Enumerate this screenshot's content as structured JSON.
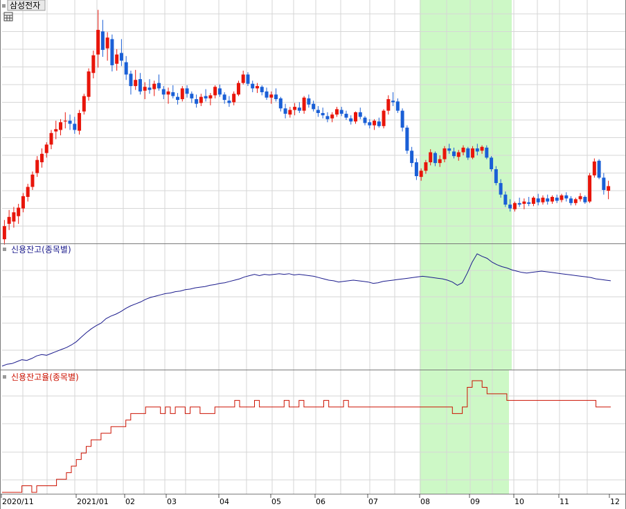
{
  "colors": {
    "up": "#e8150a",
    "down": "#1a5fd6",
    "credit_balance": "#1a1a8c",
    "credit_ratio": "#cc1100",
    "highlight": "#cdf8c6",
    "grid": "#d6d6d6",
    "frame": "#7a7a7a"
  },
  "icons": {
    "table": "table-icon",
    "panel_marker": "square-marker-icon"
  },
  "chart_data": [
    {
      "type": "candlestick",
      "title": "삼성전자",
      "x_labels": [
        "2020/11",
        "2021/01",
        "02",
        "03",
        "04",
        "05",
        "06",
        "07",
        "08",
        "09",
        "10",
        "11",
        "12"
      ],
      "highlight_range": [
        "08",
        "09"
      ],
      "grid": true,
      "ylim": [
        67000,
        97000
      ],
      "ohlc": [
        [
          67000,
          69500,
          66300,
          68700
        ],
        [
          69000,
          70800,
          68200,
          69900
        ],
        [
          69300,
          71200,
          68500,
          70500
        ],
        [
          70000,
          71600,
          69000,
          71100
        ],
        [
          71000,
          73000,
          70500,
          72600
        ],
        [
          72500,
          74200,
          71900,
          73800
        ],
        [
          73800,
          75800,
          73400,
          75400
        ],
        [
          75600,
          77800,
          75100,
          77300
        ],
        [
          77000,
          78800,
          76300,
          78100
        ],
        [
          78200,
          79600,
          77600,
          79300
        ],
        [
          79300,
          81200,
          78700,
          80800
        ],
        [
          81000,
          82400,
          80000,
          81300
        ],
        [
          81200,
          82600,
          80500,
          82200
        ],
        [
          82300,
          83500,
          81400,
          82400
        ],
        [
          82400,
          83200,
          81200,
          82000
        ],
        [
          82000,
          82900,
          80700,
          81200
        ],
        [
          81100,
          83800,
          80600,
          83400
        ],
        [
          83600,
          85900,
          83200,
          85600
        ],
        [
          85500,
          89200,
          85000,
          88800
        ],
        [
          88600,
          91500,
          87900,
          90900
        ],
        [
          91000,
          96800,
          89300,
          94200
        ],
        [
          94000,
          95500,
          90700,
          91600
        ],
        [
          91800,
          93900,
          90200,
          93200
        ],
        [
          93000,
          93600,
          88800,
          89600
        ],
        [
          89800,
          91700,
          88900,
          91000
        ],
        [
          91200,
          93000,
          89500,
          90200
        ],
        [
          90000,
          90800,
          87700,
          88400
        ],
        [
          88500,
          88900,
          85800,
          86900
        ],
        [
          86900,
          89000,
          86400,
          87700
        ],
        [
          87800,
          88600,
          85800,
          86200
        ],
        [
          86300,
          87400,
          85200,
          86800
        ],
        [
          86700,
          87800,
          85900,
          86400
        ],
        [
          86500,
          87600,
          85600,
          87200
        ],
        [
          87300,
          88400,
          86300,
          86600
        ],
        [
          86500,
          86900,
          85200,
          85800
        ],
        [
          85800,
          86700,
          84600,
          86200
        ],
        [
          86100,
          87000,
          85300,
          85600
        ],
        [
          85500,
          86000,
          84500,
          85100
        ],
        [
          85200,
          86900,
          84900,
          86600
        ],
        [
          86600,
          87000,
          85400,
          85900
        ],
        [
          85900,
          86200,
          84700,
          85300
        ],
        [
          85200,
          85800,
          84100,
          84600
        ],
        [
          84700,
          85900,
          84300,
          85500
        ],
        [
          85600,
          86500,
          84900,
          85300
        ],
        [
          85300,
          86000,
          84400,
          85700
        ],
        [
          85700,
          87000,
          85300,
          86800
        ],
        [
          86600,
          87100,
          85500,
          85800
        ],
        [
          85800,
          86100,
          84600,
          85100
        ],
        [
          85000,
          85600,
          84200,
          84700
        ],
        [
          84800,
          86200,
          84400,
          85900
        ],
        [
          85800,
          87600,
          85600,
          87300
        ],
        [
          87300,
          88900,
          87100,
          88400
        ],
        [
          88400,
          88700,
          86900,
          87200
        ],
        [
          87200,
          87600,
          86100,
          86600
        ],
        [
          86600,
          87300,
          86000,
          86900
        ],
        [
          86800,
          87000,
          85700,
          86100
        ],
        [
          86200,
          86700,
          85100,
          85400
        ],
        [
          85400,
          86200,
          84600,
          85800
        ],
        [
          85800,
          86600,
          84900,
          85200
        ],
        [
          85300,
          85500,
          83600,
          84000
        ],
        [
          84000,
          84600,
          82700,
          83300
        ],
        [
          83200,
          84200,
          82800,
          83800
        ],
        [
          83800,
          84700,
          83100,
          84200
        ],
        [
          84100,
          84800,
          83400,
          83700
        ],
        [
          83700,
          85600,
          83300,
          85400
        ],
        [
          85300,
          85800,
          84100,
          84500
        ],
        [
          84600,
          85000,
          83600,
          83900
        ],
        [
          83800,
          84300,
          82900,
          83400
        ],
        [
          83400,
          84100,
          82700,
          83100
        ],
        [
          83000,
          83500,
          82200,
          82600
        ],
        [
          82700,
          83500,
          82200,
          83200
        ],
        [
          83200,
          84200,
          82900,
          83900
        ],
        [
          83800,
          84200,
          83000,
          83300
        ],
        [
          83300,
          83700,
          82500,
          82800
        ],
        [
          82700,
          83100,
          81900,
          82300
        ],
        [
          82300,
          83600,
          82000,
          83500
        ],
        [
          83500,
          84100,
          82600,
          82900
        ],
        [
          82800,
          83000,
          81800,
          82100
        ],
        [
          82200,
          82600,
          81400,
          81800
        ],
        [
          81800,
          82600,
          81200,
          82400
        ],
        [
          82300,
          82800,
          81500,
          81700
        ],
        [
          81700,
          83900,
          81400,
          83700
        ],
        [
          83700,
          85700,
          83200,
          85200
        ],
        [
          85000,
          86100,
          84300,
          84800
        ],
        [
          84900,
          85300,
          83400,
          83700
        ],
        [
          83700,
          84000,
          81000,
          81500
        ],
        [
          81500,
          81800,
          78100,
          78500
        ],
        [
          78500,
          79000,
          76400,
          76900
        ],
        [
          77000,
          77500,
          74700,
          75200
        ],
        [
          75100,
          76200,
          74600,
          75900
        ],
        [
          75900,
          77300,
          75500,
          77000
        ],
        [
          77000,
          78700,
          76600,
          78300
        ],
        [
          78200,
          78400,
          76500,
          76900
        ],
        [
          76900,
          77900,
          76400,
          77400
        ],
        [
          77400,
          79100,
          77000,
          78800
        ],
        [
          78800,
          79400,
          78100,
          78500
        ],
        [
          78400,
          78900,
          77500,
          77800
        ],
        [
          77700,
          78600,
          77200,
          78300
        ],
        [
          78300,
          79200,
          77900,
          78900
        ],
        [
          78800,
          79000,
          77300,
          77600
        ],
        [
          77600,
          79100,
          77400,
          78800
        ],
        [
          78800,
          79400,
          77900,
          78400
        ],
        [
          78500,
          79200,
          78100,
          79000
        ],
        [
          78900,
          79200,
          77400,
          77600
        ],
        [
          77600,
          77800,
          75800,
          76100
        ],
        [
          76100,
          76500,
          74000,
          74300
        ],
        [
          74300,
          74800,
          72400,
          72800
        ],
        [
          72800,
          73200,
          71200,
          71500
        ],
        [
          71500,
          72200,
          70600,
          71000
        ],
        [
          70900,
          71900,
          70600,
          71700
        ],
        [
          71700,
          72400,
          71200,
          71500
        ],
        [
          71600,
          72300,
          70900,
          71900
        ],
        [
          71800,
          72500,
          71300,
          71600
        ],
        [
          71600,
          72600,
          71300,
          72400
        ],
        [
          72300,
          72900,
          71400,
          71800
        ],
        [
          71800,
          72700,
          71500,
          72400
        ],
        [
          72300,
          72800,
          71500,
          71900
        ],
        [
          71900,
          72700,
          71600,
          72500
        ],
        [
          72400,
          72800,
          71700,
          72000
        ],
        [
          72100,
          72900,
          71800,
          72700
        ],
        [
          72700,
          73100,
          71900,
          72300
        ],
        [
          72300,
          72600,
          71400,
          71700
        ],
        [
          71700,
          72400,
          71400,
          72200
        ],
        [
          72200,
          73000,
          71900,
          72600
        ],
        [
          72500,
          72700,
          71600,
          71800
        ],
        [
          71900,
          75600,
          71700,
          75300
        ],
        [
          75300,
          77500,
          75000,
          77100
        ],
        [
          77200,
          77400,
          74800,
          75000
        ],
        [
          75000,
          75600,
          72800,
          73400
        ],
        [
          73300,
          74600,
          72200,
          73900
        ]
      ]
    },
    {
      "type": "line",
      "title": "신용잔고(종목별)",
      "series": [
        {
          "values": [
            100,
            103,
            104,
            107,
            110,
            109,
            112,
            116,
            118,
            117,
            120,
            123,
            126,
            129,
            133,
            138,
            145,
            152,
            158,
            163,
            167,
            174,
            178,
            181,
            185,
            190,
            194,
            197,
            200,
            204,
            207,
            209,
            211,
            213,
            214,
            216,
            217,
            219,
            220,
            222,
            223,
            224,
            226,
            227,
            229,
            230,
            232,
            234,
            236,
            239,
            241,
            243,
            241,
            243,
            242,
            243,
            244,
            243,
            244,
            242,
            243,
            242,
            241,
            240,
            238,
            236,
            234,
            233,
            231,
            232,
            233,
            234,
            233,
            232,
            231,
            229,
            230,
            232,
            233,
            234,
            235,
            236,
            237,
            238,
            239,
            240,
            239,
            238,
            237,
            236,
            234,
            231,
            226,
            230,
            245,
            262,
            275,
            271,
            268,
            262,
            258,
            255,
            253,
            250,
            248,
            246,
            245,
            246,
            247,
            248,
            247,
            246,
            245,
            244,
            243,
            242,
            241,
            240,
            239,
            238,
            236,
            235,
            234,
            233
          ]
        }
      ]
    },
    {
      "type": "line",
      "title": "신용잔고율(종목별)",
      "series": [
        {
          "values": [
            0.1,
            0.1,
            0.1,
            0.1,
            0.11,
            0.11,
            0.1,
            0.11,
            0.11,
            0.11,
            0.11,
            0.12,
            0.12,
            0.13,
            0.14,
            0.15,
            0.16,
            0.17,
            0.18,
            0.18,
            0.19,
            0.19,
            0.2,
            0.2,
            0.2,
            0.21,
            0.22,
            0.22,
            0.22,
            0.23,
            0.23,
            0.23,
            0.22,
            0.23,
            0.22,
            0.23,
            0.23,
            0.22,
            0.23,
            0.23,
            0.22,
            0.22,
            0.22,
            0.23,
            0.23,
            0.23,
            0.23,
            0.24,
            0.23,
            0.23,
            0.23,
            0.24,
            0.23,
            0.23,
            0.23,
            0.23,
            0.23,
            0.24,
            0.23,
            0.23,
            0.24,
            0.23,
            0.23,
            0.23,
            0.23,
            0.24,
            0.23,
            0.23,
            0.23,
            0.24,
            0.23,
            0.23,
            0.23,
            0.23,
            0.23,
            0.23,
            0.23,
            0.23,
            0.23,
            0.23,
            0.23,
            0.23,
            0.23,
            0.23,
            0.23,
            0.23,
            0.23,
            0.23,
            0.23,
            0.23,
            0.23,
            0.22,
            0.22,
            0.23,
            0.26,
            0.27,
            0.27,
            0.26,
            0.25,
            0.25,
            0.25,
            0.25,
            0.24,
            0.24,
            0.24,
            0.24,
            0.24,
            0.24,
            0.24,
            0.24,
            0.24,
            0.24,
            0.24,
            0.24,
            0.24,
            0.24,
            0.24,
            0.24,
            0.24,
            0.24,
            0.23,
            0.23,
            0.23,
            0.23
          ]
        }
      ]
    }
  ]
}
